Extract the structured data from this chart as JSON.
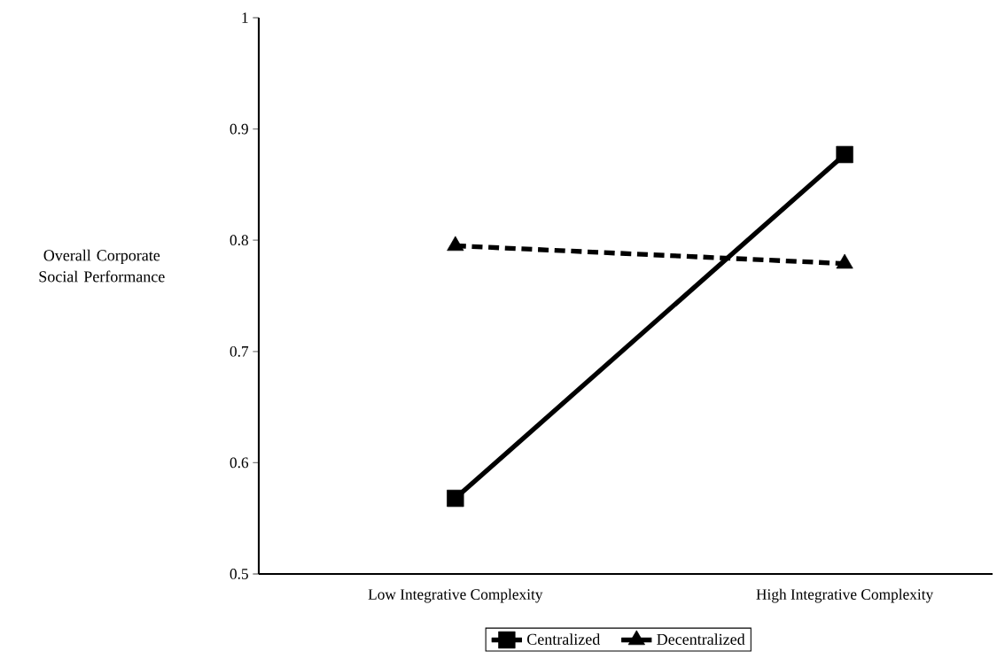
{
  "chart_data": {
    "type": "line",
    "ylabel": "Overall Corporate Social Performance",
    "categories": [
      "Low Integrative Complexity",
      "High Integrative Complexity"
    ],
    "series": [
      {
        "name": "Centralized",
        "color": "#000000",
        "values": [
          0.568,
          0.877
        ],
        "marker": "square",
        "line_style": "solid"
      },
      {
        "name": "Decentralized",
        "color": "#000000",
        "values": [
          0.795,
          0.779
        ],
        "marker": "triangle",
        "line_style": "dashed"
      }
    ],
    "ylim": [
      0.5,
      1
    ],
    "yticks": [
      0.5,
      0.6,
      0.7,
      0.8,
      0.9,
      1
    ],
    "grid": false,
    "legend": "bottom"
  }
}
